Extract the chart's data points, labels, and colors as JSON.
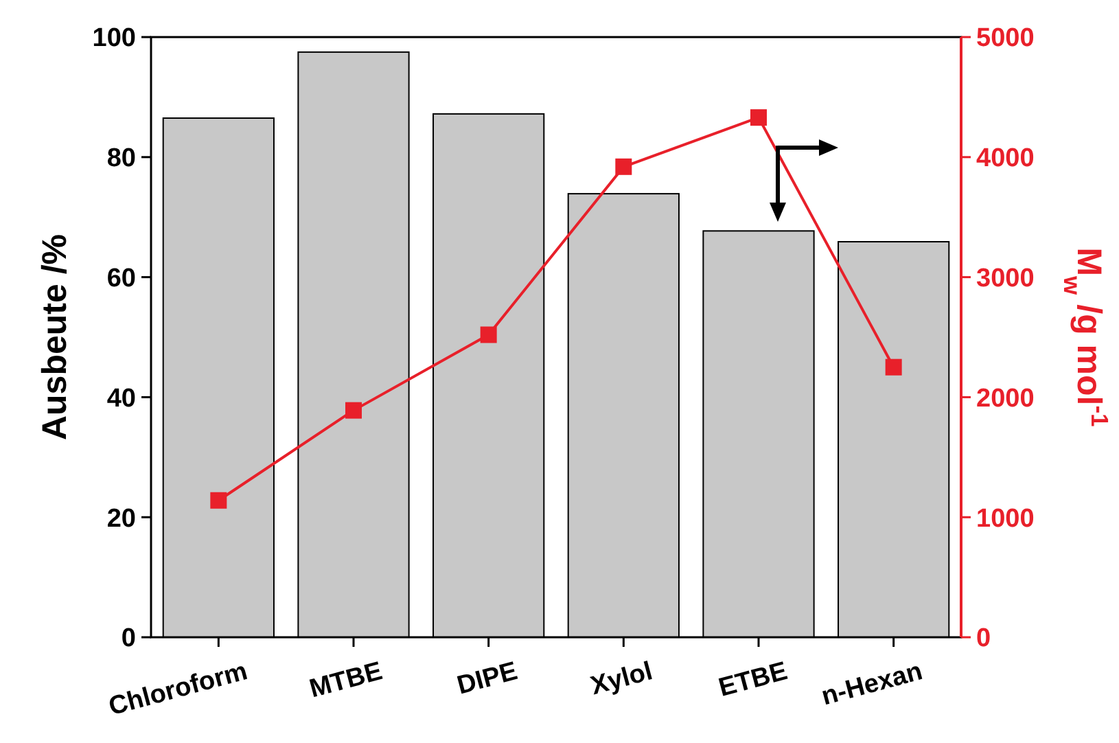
{
  "chart_data": {
    "type": "bar",
    "xlabel": null,
    "ylabel": "Ausbeute /%",
    "y2label": "M$_{w}$ /g mol$^{-1}$",
    "categories": [
      "Chloroform",
      "MTBE",
      "DIPE",
      "Xylol",
      "ETBE",
      "n-Hexan"
    ],
    "series": [
      {
        "color": "#c8c8c8",
        "values": [
          86.5,
          97.5,
          87.2,
          73.9,
          67.7,
          65.9
        ]
      },
      {
        "type": "line",
        "axis": "y2",
        "color": "#e8202a",
        "marker": "square",
        "values": [
          1140,
          1890,
          2520,
          3920,
          4330,
          2250
        ]
      }
    ],
    "ylim": [
      0,
      100
    ],
    "yticks": [
      0,
      20,
      40,
      60,
      80,
      100
    ],
    "y2lim": [
      0,
      5000
    ],
    "y2ticks": [
      0,
      1000,
      2000,
      3000,
      4000,
      5000
    ],
    "grid": false
  }
}
